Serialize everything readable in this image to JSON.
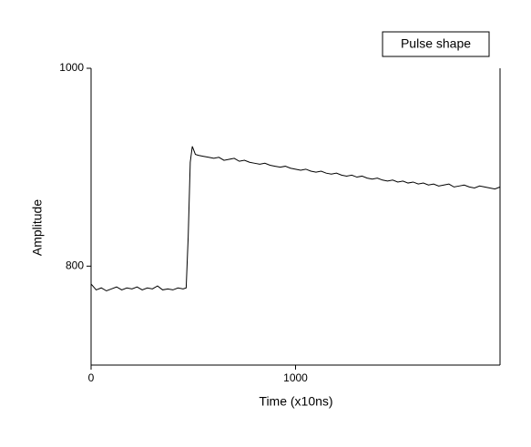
{
  "chart_data": {
    "type": "line",
    "x_label": "Time (x10ns)",
    "y_label": "Amplitude",
    "x": [
      0,
      25,
      50,
      75,
      100,
      125,
      150,
      175,
      200,
      225,
      250,
      275,
      300,
      325,
      350,
      375,
      400,
      425,
      450,
      465,
      475,
      485,
      495,
      510,
      525,
      550,
      575,
      600,
      625,
      650,
      675,
      700,
      725,
      750,
      775,
      800,
      825,
      850,
      875,
      900,
      925,
      950,
      975,
      1000,
      1025,
      1050,
      1075,
      1100,
      1125,
      1150,
      1175,
      1200,
      1225,
      1250,
      1275,
      1300,
      1325,
      1350,
      1375,
      1400,
      1425,
      1450,
      1475,
      1500,
      1525,
      1550,
      1575,
      1600,
      1625,
      1650,
      1675,
      1700,
      1725,
      1750,
      1775,
      1800,
      1825,
      1850,
      1875,
      1900,
      1925,
      1950,
      1975,
      2000
    ],
    "series": [
      {
        "name": "Pulse shape",
        "color": "#000000",
        "values": [
          782,
          776,
          778,
          775,
          777,
          779,
          776,
          778,
          777,
          779,
          776,
          778,
          777,
          780,
          776,
          777,
          776,
          778,
          777,
          778,
          830,
          905,
          921,
          913,
          912,
          911,
          910,
          909,
          910,
          907,
          908,
          909,
          906,
          907,
          905,
          904,
          903,
          904,
          902,
          901,
          900,
          901,
          899,
          898,
          897,
          898,
          896,
          895,
          896,
          894,
          893,
          894,
          892,
          891,
          892,
          890,
          891,
          889,
          888,
          889,
          887,
          886,
          887,
          885,
          886,
          884,
          885,
          883,
          884,
          882,
          883,
          881,
          882,
          883,
          880,
          881,
          882,
          880,
          879,
          881,
          880,
          879,
          878,
          880
        ]
      }
    ],
    "xlim": [
      0,
      2000
    ],
    "xticks": [
      0,
      1000
    ],
    "ylim": [
      700,
      1000
    ],
    "yticks": [
      800,
      1000
    ],
    "legend": "top-right"
  }
}
